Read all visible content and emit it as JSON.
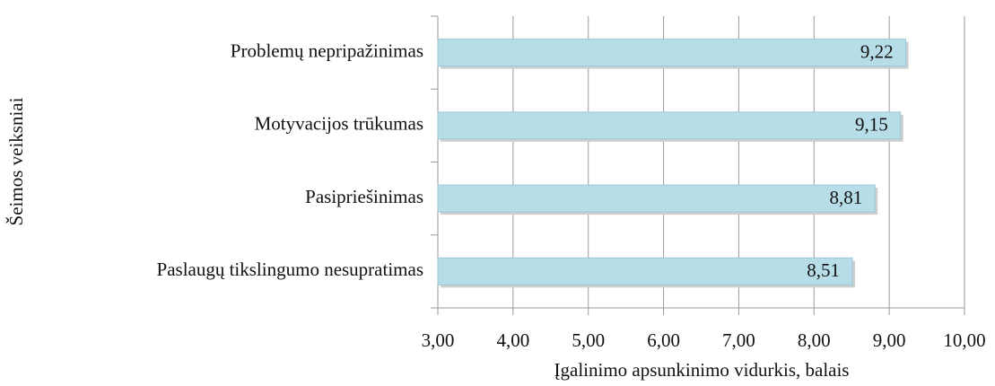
{
  "chart_data": {
    "type": "bar",
    "orientation": "horizontal",
    "categories": [
      "Problemų nepripažinimas",
      "Motyvacijos trūkumas",
      "Pasipriešinimas",
      "Paslaugų tikslingumo nesupratimas"
    ],
    "values": [
      9.22,
      9.15,
      8.81,
      8.51
    ],
    "value_labels": [
      "9,22",
      "9,15",
      "8,81",
      "8,51"
    ],
    "color": "#b7dde8",
    "xlim": [
      3,
      10
    ],
    "xticks": [
      {
        "value": 3,
        "label": "3,00"
      },
      {
        "value": 4,
        "label": "4,00"
      },
      {
        "value": 5,
        "label": "5,00"
      },
      {
        "value": 6,
        "label": "6,00"
      },
      {
        "value": 7,
        "label": "7,00"
      },
      {
        "value": 8,
        "label": "8,00"
      },
      {
        "value": 9,
        "label": "9,00"
      },
      {
        "value": 10,
        "label": "10,00"
      }
    ],
    "grid": true,
    "xlabel": "Įgalinimo apsunkinimo vidurkis, balais",
    "ylabel": "Šeimos veiksniai"
  }
}
